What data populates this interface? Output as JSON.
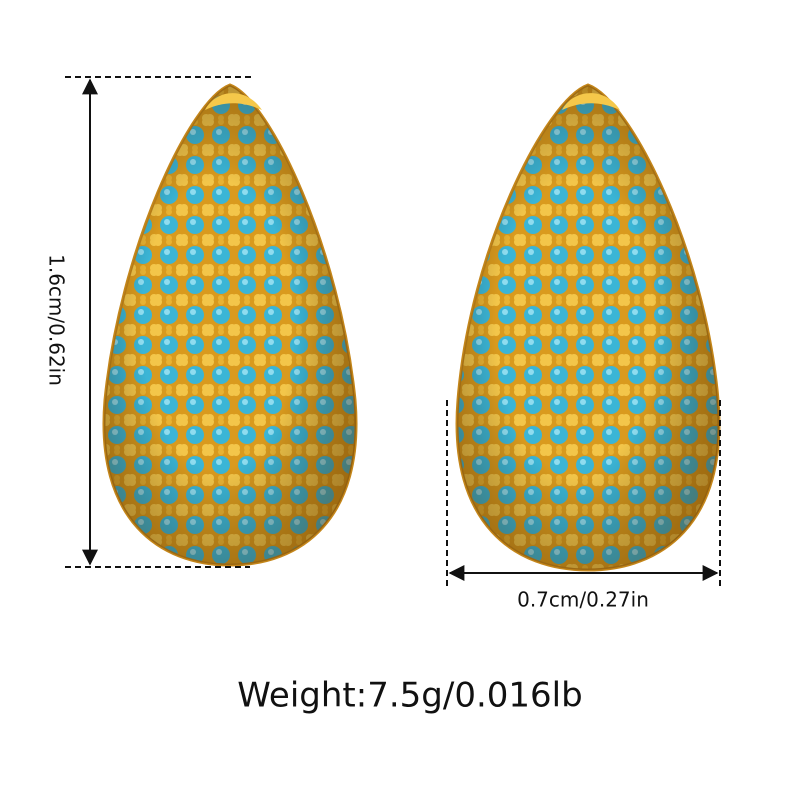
{
  "dimensions": {
    "height": "1.6cm/0.62in",
    "width": "0.7cm/0.27in"
  },
  "weight": "Weight:7.5g/0.016lb"
}
